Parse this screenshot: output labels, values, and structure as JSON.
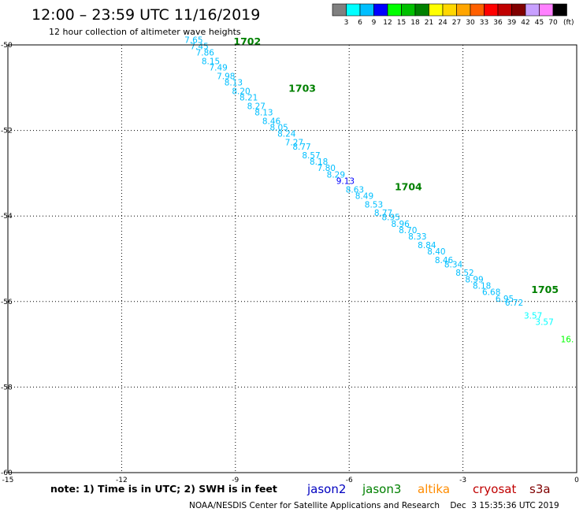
{
  "title": "12:00 – 23:59 UTC 11/16/2019",
  "subtitle": "12 hour collection of altimeter wave heights",
  "colorbar": {
    "labels": [
      "3",
      "6",
      "9",
      "12",
      "15",
      "18",
      "21",
      "24",
      "27",
      "30",
      "33",
      "36",
      "39",
      "42",
      "45",
      "70"
    ],
    "unit": "(ft)",
    "colors": [
      "#808080",
      "#00ffff",
      "#00bfff",
      "#0000ff",
      "#00ff00",
      "#00c000",
      "#008000",
      "#ffff00",
      "#ffd700",
      "#ffa500",
      "#ff6000",
      "#ff0000",
      "#c00000",
      "#800000",
      "#c8a0ff",
      "#ff80ff",
      "#000000"
    ]
  },
  "note": "note: 1) Time is in UTC; 2) SWH is in feet",
  "satellites": [
    {
      "label": "jason2",
      "color": "#0000c0"
    },
    {
      "label": "jason3",
      "color": "#008000"
    },
    {
      "label": "altika",
      "color": "#ff8c00"
    },
    {
      "label": "cryosat",
      "color": "#c00000"
    },
    {
      "label": "s3a",
      "color": "#800000"
    }
  ],
  "footer": "NOAA/NESDIS Center for Satellite Applications and Research    Dec  3 15:35:36 UTC 2019",
  "chart_data": {
    "type": "scatter",
    "xlim": [
      -15,
      0
    ],
    "ylim": [
      -60,
      -50
    ],
    "xticks": [
      "-15",
      "-12",
      "-9",
      "-6",
      "-3",
      "0"
    ],
    "yticks": [
      "-50",
      "-52",
      "-54",
      "-56",
      "-58",
      "-60"
    ],
    "grid": true,
    "pass_labels": [
      {
        "text": "1702",
        "x": -9.05,
        "y": -50.0
      },
      {
        "text": "1703",
        "x": -7.6,
        "y": -51.1
      },
      {
        "text": "1704",
        "x": -4.8,
        "y": -53.4
      },
      {
        "text": "1705",
        "x": -1.2,
        "y": -55.8
      }
    ],
    "points": [
      {
        "x": -10.1,
        "y": -49.95,
        "v": "7.65",
        "c": "#00bfff"
      },
      {
        "x": -9.95,
        "y": -50.1,
        "v": "7.45",
        "c": "#00bfff"
      },
      {
        "x": -9.8,
        "y": -50.25,
        "v": "7.86",
        "c": "#00bfff"
      },
      {
        "x": -9.65,
        "y": -50.45,
        "v": "8.15",
        "c": "#00bfff"
      },
      {
        "x": -9.45,
        "y": -50.6,
        "v": "7.49",
        "c": "#00bfff"
      },
      {
        "x": -9.25,
        "y": -50.8,
        "v": "7.98",
        "c": "#00bfff"
      },
      {
        "x": -9.05,
        "y": -50.95,
        "v": "8.13",
        "c": "#00bfff"
      },
      {
        "x": -8.85,
        "y": -51.15,
        "v": "8.20",
        "c": "#00bfff"
      },
      {
        "x": -8.65,
        "y": -51.3,
        "v": "8.21",
        "c": "#00bfff"
      },
      {
        "x": -8.45,
        "y": -51.5,
        "v": "8.27",
        "c": "#00bfff"
      },
      {
        "x": -8.25,
        "y": -51.65,
        "v": "8.13",
        "c": "#00bfff"
      },
      {
        "x": -8.05,
        "y": -51.85,
        "v": "8.46",
        "c": "#00bfff"
      },
      {
        "x": -7.85,
        "y": -52.0,
        "v": "8.05",
        "c": "#00bfff"
      },
      {
        "x": -7.65,
        "y": -52.15,
        "v": "8.24",
        "c": "#00bfff"
      },
      {
        "x": -7.45,
        "y": -52.35,
        "v": "7.27",
        "c": "#00bfff"
      },
      {
        "x": -7.25,
        "y": -52.45,
        "v": "8.77",
        "c": "#00bfff"
      },
      {
        "x": -7.0,
        "y": -52.65,
        "v": "8.57",
        "c": "#00bfff"
      },
      {
        "x": -6.8,
        "y": -52.8,
        "v": "8.18",
        "c": "#00bfff"
      },
      {
        "x": -6.6,
        "y": -52.95,
        "v": "7.80",
        "c": "#00bfff"
      },
      {
        "x": -6.35,
        "y": -53.1,
        "v": "8.29",
        "c": "#00bfff"
      },
      {
        "x": -6.1,
        "y": -53.25,
        "v": "9.13",
        "c": "#0000ff"
      },
      {
        "x": -5.85,
        "y": -53.45,
        "v": "8.63",
        "c": "#00bfff"
      },
      {
        "x": -5.6,
        "y": -53.6,
        "v": "8.49",
        "c": "#00bfff"
      },
      {
        "x": -5.35,
        "y": -53.8,
        "v": "8.53",
        "c": "#00bfff"
      },
      {
        "x": -5.1,
        "y": -54.0,
        "v": "8.77",
        "c": "#00bfff"
      },
      {
        "x": -4.9,
        "y": -54.1,
        "v": "8.95",
        "c": "#00bfff"
      },
      {
        "x": -4.65,
        "y": -54.25,
        "v": "8.96",
        "c": "#00bfff"
      },
      {
        "x": -4.45,
        "y": -54.4,
        "v": "8.70",
        "c": "#00bfff"
      },
      {
        "x": -4.2,
        "y": -54.55,
        "v": "8.33",
        "c": "#00bfff"
      },
      {
        "x": -3.95,
        "y": -54.75,
        "v": "8.84",
        "c": "#00bfff"
      },
      {
        "x": -3.7,
        "y": -54.9,
        "v": "8.40",
        "c": "#00bfff"
      },
      {
        "x": -3.5,
        "y": -55.1,
        "v": "8.46",
        "c": "#00bfff"
      },
      {
        "x": -3.25,
        "y": -55.2,
        "v": "8.34",
        "c": "#00bfff"
      },
      {
        "x": -2.95,
        "y": -55.4,
        "v": "8.52",
        "c": "#00bfff"
      },
      {
        "x": -2.7,
        "y": -55.55,
        "v": "8.99",
        "c": "#00bfff"
      },
      {
        "x": -2.5,
        "y": -55.7,
        "v": "8.18",
        "c": "#00bfff"
      },
      {
        "x": -2.25,
        "y": -55.85,
        "v": "6.68",
        "c": "#00bfff"
      },
      {
        "x": -1.9,
        "y": -56.0,
        "v": "6.95",
        "c": "#00bfff"
      },
      {
        "x": -1.65,
        "y": -56.1,
        "v": "6.72",
        "c": "#00bfff"
      },
      {
        "x": -1.15,
        "y": -56.4,
        "v": "3.57",
        "c": "#00ffff"
      },
      {
        "x": -0.85,
        "y": -56.55,
        "v": "3.57",
        "c": "#00ffff"
      },
      {
        "x": -0.25,
        "y": -56.95,
        "v": "16.",
        "c": "#00ff00"
      }
    ]
  }
}
